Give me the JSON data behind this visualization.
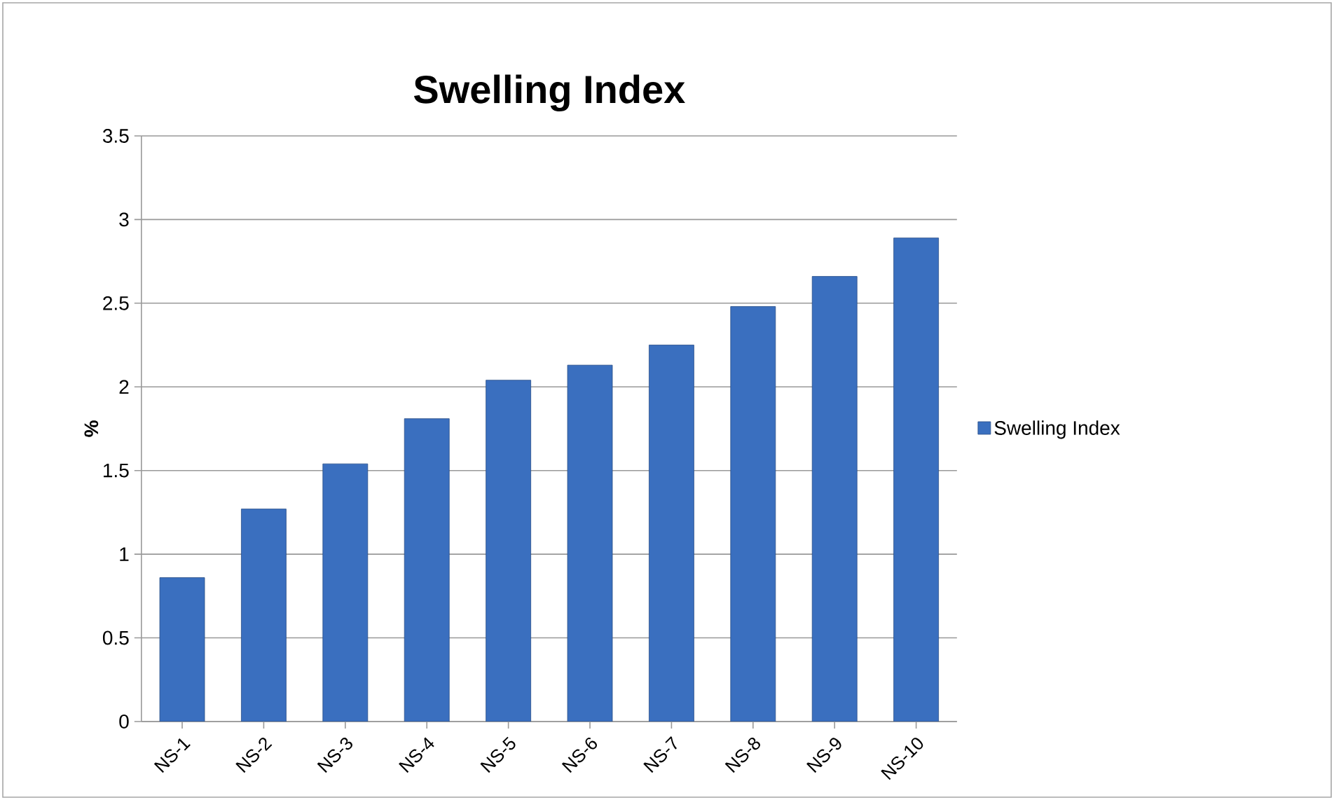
{
  "chart_data": {
    "type": "bar",
    "title": "Swelling  Index",
    "ylabel": "%",
    "categories": [
      "NS-1",
      "NS-2",
      "NS-3",
      "NS-4",
      "NS-5",
      "NS-6",
      "NS-7",
      "NS-8",
      "NS-9",
      "NS-10"
    ],
    "series": [
      {
        "name": "Swelling  Index",
        "color": "#3a6fbf",
        "values": [
          0.86,
          1.27,
          1.54,
          1.81,
          2.04,
          2.13,
          2.25,
          2.48,
          2.66,
          2.89
        ]
      }
    ],
    "ylim": [
      0,
      3.5
    ],
    "yticks": [
      0,
      0.5,
      1,
      1.5,
      2,
      2.5,
      3,
      3.5
    ],
    "grid": "y",
    "legend": "right"
  }
}
